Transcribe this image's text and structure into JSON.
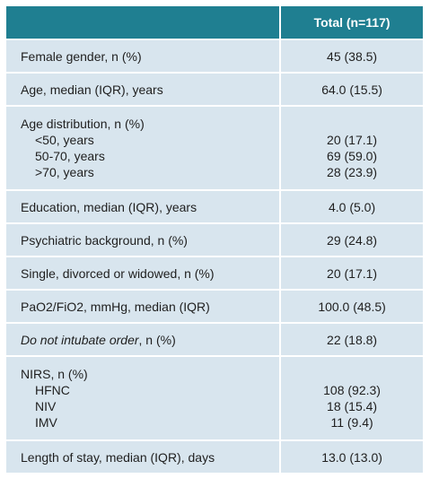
{
  "table": {
    "header": {
      "label": "",
      "value": "Total (n=117)"
    },
    "rows": [
      {
        "label": "Female gender, n (%)",
        "value": "45 (38.5)"
      },
      {
        "label": "Age, median (IQR), years",
        "value": "64.0 (15.5)"
      },
      {
        "label": "Age distribution, n (%)",
        "sub": [
          {
            "label": "<50, years",
            "value": "20 (17.1)"
          },
          {
            "label": "50-70, years",
            "value": "69 (59.0)"
          },
          {
            "label": ">70, years",
            "value": "28 (23.9)"
          }
        ]
      },
      {
        "label": "Education, median (IQR), years",
        "value": "4.0 (5.0)"
      },
      {
        "label": "Psychiatric background, n (%)",
        "value": "29 (24.8)"
      },
      {
        "label": "Single, divorced or widowed, n (%)",
        "value": "20 (17.1)"
      },
      {
        "label": "PaO2/FiO2, mmHg, median (IQR)",
        "value": "100.0 (48.5)"
      },
      {
        "label_italic": "Do not intubate order",
        "label_rest": ", n (%)",
        "value": "22 (18.8)"
      },
      {
        "label": "NIRS, n (%)",
        "sub": [
          {
            "label": "HFNC",
            "value": "108 (92.3)"
          },
          {
            "label": "NIV",
            "value": "18 (15.4)"
          },
          {
            "label": "IMV",
            "value": "11 (9.4)"
          }
        ]
      },
      {
        "label": "Length of stay, median (IQR), days",
        "value": "13.0 (13.0)"
      }
    ]
  },
  "colors": {
    "header_bg": "#1f7f91",
    "row_bg": "#d8e5ee",
    "separator": "#ffffff"
  }
}
